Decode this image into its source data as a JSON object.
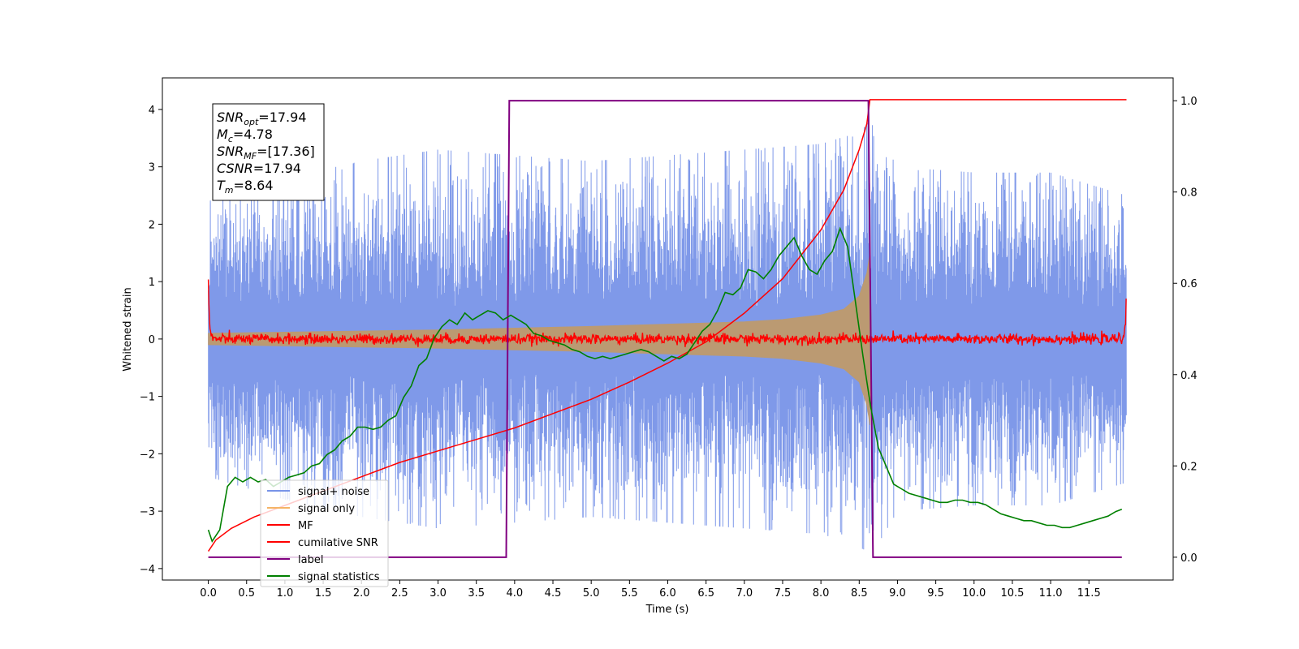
{
  "chart_data": {
    "type": "line",
    "xlabel": "Time (s)",
    "ylabel": "Whitened strain",
    "xlim": [
      -0.6,
      12.6
    ],
    "ylim": [
      -4.2,
      4.55
    ],
    "y2lim": [
      -0.05,
      1.05
    ],
    "x_ticks": [
      0.0,
      0.5,
      1.0,
      1.5,
      2.0,
      2.5,
      3.0,
      3.5,
      4.0,
      4.5,
      5.0,
      5.5,
      6.0,
      6.5,
      7.0,
      7.5,
      8.0,
      8.5,
      9.0,
      9.5,
      10.0,
      10.5,
      11.0,
      11.5
    ],
    "x_tick_labels": [
      "0.0",
      "0.5",
      "1.0",
      "1.5",
      "2.0",
      "2.5",
      "3.0",
      "3.5",
      "4.0",
      "4.5",
      "5.0",
      "5.5",
      "6.0",
      "6.5",
      "7.0",
      "7.5",
      "8.0",
      "8.5",
      "9.0",
      "9.5",
      "10.0",
      "10.5",
      "11.0",
      "11.5"
    ],
    "y_ticks": [
      -4,
      -3,
      -2,
      -1,
      0,
      1,
      2,
      3,
      4
    ],
    "y_tick_labels": [
      "−4",
      "−3",
      "−2",
      "−1",
      "0",
      "1",
      "2",
      "3",
      "4"
    ],
    "y2_ticks": [
      0.0,
      0.2,
      0.4,
      0.6,
      0.8,
      1.0
    ],
    "y2_tick_labels": [
      "0.0",
      "0.2",
      "0.4",
      "0.6",
      "0.8",
      "1.0"
    ],
    "legend_position": "lower-left",
    "annotation": {
      "lines": [
        {
          "main": "SNR",
          "sub": "opt",
          "value": "=17.94"
        },
        {
          "main": "M",
          "sub": "c",
          "value": "=4.78"
        },
        {
          "main": "SNR",
          "sub": "MF",
          "value": "=[17.36]"
        },
        {
          "main": "CSNR",
          "sub": "",
          "value": "=17.94"
        },
        {
          "main": "T",
          "sub": "m",
          "value": "=8.64"
        }
      ]
    },
    "series": [
      {
        "name": "signal+ noise",
        "color": "#7894e8",
        "axis": "left",
        "kind": "noise",
        "x_range": [
          0.0,
          11.99
        ],
        "envelope": [
          [
            0.0,
            2.4
          ],
          [
            1.0,
            2.8
          ],
          [
            2.0,
            3.1
          ],
          [
            3.0,
            3.3
          ],
          [
            4.0,
            3.2
          ],
          [
            5.0,
            3.1
          ],
          [
            6.0,
            3.2
          ],
          [
            7.0,
            3.3
          ],
          [
            8.0,
            3.4
          ],
          [
            8.5,
            3.6
          ],
          [
            8.64,
            3.8
          ],
          [
            9.0,
            3.0
          ],
          [
            10.0,
            2.9
          ],
          [
            11.0,
            2.9
          ],
          [
            11.99,
            2.5
          ]
        ]
      },
      {
        "name": "signal only",
        "color": "#f5b466",
        "fill_color": "#bb9a72",
        "axis": "left",
        "kind": "chirp-envelope",
        "envelope": [
          [
            0.0,
            0.1
          ],
          [
            1.0,
            0.12
          ],
          [
            2.0,
            0.14
          ],
          [
            3.0,
            0.16
          ],
          [
            4.0,
            0.19
          ],
          [
            5.0,
            0.22
          ],
          [
            6.0,
            0.26
          ],
          [
            7.0,
            0.3
          ],
          [
            7.5,
            0.34
          ],
          [
            8.0,
            0.42
          ],
          [
            8.3,
            0.52
          ],
          [
            8.5,
            0.75
          ],
          [
            8.6,
            1.15
          ],
          [
            8.64,
            1.5
          ],
          [
            8.66,
            0.0
          ]
        ]
      },
      {
        "name": "MF",
        "color": "#ff0000",
        "axis": "left",
        "kind": "mf",
        "x": [
          0.0,
          0.01,
          0.03,
          0.06,
          11.94,
          11.98,
          11.99
        ],
        "y": [
          1.0,
          0.4,
          0.1,
          0.0,
          0.0,
          0.3,
          0.9
        ]
      },
      {
        "name": "cumilative SNR",
        "color": "#ff0000",
        "axis": "left",
        "x": [
          0.0,
          0.1,
          0.3,
          0.6,
          1.0,
          1.5,
          2.0,
          2.5,
          3.0,
          3.5,
          4.0,
          4.5,
          5.0,
          5.5,
          6.0,
          6.5,
          7.0,
          7.5,
          8.0,
          8.3,
          8.5,
          8.6,
          8.64,
          11.99
        ],
        "y": [
          -3.7,
          -3.5,
          -3.3,
          -3.1,
          -2.9,
          -2.65,
          -2.4,
          -2.15,
          -1.95,
          -1.75,
          -1.55,
          -1.3,
          -1.05,
          -0.75,
          -0.42,
          -0.05,
          0.45,
          1.05,
          1.9,
          2.6,
          3.3,
          3.75,
          4.17,
          4.17
        ]
      },
      {
        "name": "label",
        "color": "#800080",
        "axis": "right",
        "x": [
          0.0,
          3.89,
          3.93,
          8.62,
          8.68,
          11.93
        ],
        "y": [
          0.0,
          0.0,
          1.0,
          1.0,
          0.0,
          0.0
        ]
      },
      {
        "name": "signal statistics",
        "color": "#008000",
        "axis": "right",
        "x": [
          0.0,
          0.05,
          0.15,
          0.25,
          0.35,
          0.45,
          0.55,
          0.65,
          0.75,
          0.85,
          0.95,
          1.05,
          1.15,
          1.25,
          1.35,
          1.45,
          1.55,
          1.65,
          1.75,
          1.85,
          1.95,
          2.05,
          2.15,
          2.25,
          2.35,
          2.45,
          2.55,
          2.65,
          2.75,
          2.85,
          2.95,
          3.05,
          3.15,
          3.25,
          3.35,
          3.45,
          3.55,
          3.65,
          3.75,
          3.85,
          3.95,
          4.05,
          4.15,
          4.25,
          4.35,
          4.45,
          4.55,
          4.65,
          4.75,
          4.85,
          4.95,
          5.05,
          5.15,
          5.25,
          5.35,
          5.45,
          5.55,
          5.65,
          5.75,
          5.85,
          5.95,
          6.05,
          6.15,
          6.25,
          6.35,
          6.45,
          6.55,
          6.65,
          6.75,
          6.85,
          6.95,
          7.05,
          7.15,
          7.25,
          7.35,
          7.45,
          7.55,
          7.65,
          7.75,
          7.85,
          7.95,
          8.05,
          8.15,
          8.25,
          8.35,
          8.45,
          8.55,
          8.65,
          8.75,
          8.85,
          8.95,
          9.05,
          9.15,
          9.25,
          9.35,
          9.45,
          9.55,
          9.65,
          9.75,
          9.85,
          9.95,
          10.05,
          10.15,
          10.25,
          10.35,
          10.45,
          10.55,
          10.65,
          10.75,
          10.85,
          10.95,
          11.05,
          11.15,
          11.25,
          11.35,
          11.45,
          11.55,
          11.65,
          11.75,
          11.85,
          11.93
        ],
        "y": [
          0.06,
          0.035,
          0.06,
          0.155,
          0.175,
          0.165,
          0.175,
          0.165,
          0.17,
          0.155,
          0.165,
          0.175,
          0.18,
          0.185,
          0.2,
          0.205,
          0.225,
          0.235,
          0.255,
          0.265,
          0.285,
          0.285,
          0.28,
          0.285,
          0.3,
          0.31,
          0.35,
          0.375,
          0.42,
          0.435,
          0.48,
          0.505,
          0.52,
          0.51,
          0.535,
          0.52,
          0.53,
          0.54,
          0.535,
          0.52,
          0.53,
          0.52,
          0.51,
          0.49,
          0.485,
          0.475,
          0.47,
          0.465,
          0.455,
          0.45,
          0.44,
          0.435,
          0.44,
          0.435,
          0.44,
          0.445,
          0.45,
          0.455,
          0.45,
          0.44,
          0.43,
          0.44,
          0.435,
          0.445,
          0.47,
          0.495,
          0.51,
          0.54,
          0.58,
          0.575,
          0.59,
          0.63,
          0.625,
          0.61,
          0.63,
          0.66,
          0.68,
          0.7,
          0.66,
          0.63,
          0.62,
          0.65,
          0.67,
          0.72,
          0.68,
          0.56,
          0.44,
          0.33,
          0.24,
          0.2,
          0.16,
          0.15,
          0.14,
          0.135,
          0.13,
          0.125,
          0.12,
          0.12,
          0.125,
          0.125,
          0.12,
          0.12,
          0.115,
          0.105,
          0.095,
          0.09,
          0.085,
          0.08,
          0.08,
          0.075,
          0.07,
          0.07,
          0.065,
          0.065,
          0.07,
          0.075,
          0.08,
          0.085,
          0.09,
          0.1,
          0.105
        ]
      }
    ]
  }
}
